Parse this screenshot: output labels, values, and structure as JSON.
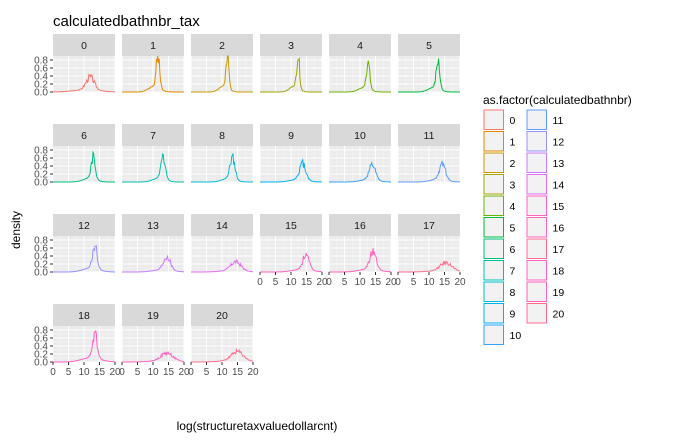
{
  "chart_data": {
    "type": "area",
    "title": "calculatedbathnbr_tax",
    "xlabel": "log(structuretaxvaluedollarcnt)",
    "ylabel": "density",
    "xlim": [
      0,
      20
    ],
    "ylim": [
      0,
      0.9
    ],
    "x_ticks": [
      0,
      5,
      10,
      15,
      20
    ],
    "x_tick_labels": [
      "0",
      "5",
      "10",
      "15",
      "20"
    ],
    "y_ticks": [
      0.0,
      0.2,
      0.4,
      0.6,
      0.8
    ],
    "y_tick_labels": [
      "0.0",
      "0.2",
      "0.4",
      "0.6",
      "0.8"
    ],
    "grid": true,
    "legend_title": "as.factor(calculatedbathnbr)",
    "legend_position": "right",
    "panels": [
      {
        "label": "0",
        "color": "#F8766D",
        "peak": 0.32,
        "center": 12.0,
        "width": 1.3,
        "spread": 4.0
      },
      {
        "label": "1",
        "color": "#E58700",
        "peak": 0.8,
        "center": 11.6,
        "width": 0.55,
        "spread": 1.8
      },
      {
        "label": "2",
        "color": "#C99800",
        "peak": 0.86,
        "center": 11.8,
        "width": 0.45,
        "spread": 1.5
      },
      {
        "label": "3",
        "color": "#A3A500",
        "peak": 0.83,
        "center": 12.3,
        "width": 0.45,
        "spread": 1.5
      },
      {
        "label": "4",
        "color": "#6BB100",
        "peak": 0.64,
        "center": 12.6,
        "width": 0.55,
        "spread": 1.8
      },
      {
        "label": "5",
        "color": "#00BA38",
        "peak": 0.67,
        "center": 12.9,
        "width": 0.55,
        "spread": 1.8
      },
      {
        "label": "6",
        "color": "#00BF7D",
        "peak": 0.55,
        "center": 13.0,
        "width": 0.65,
        "spread": 2.0
      },
      {
        "label": "7",
        "color": "#00C0AF",
        "peak": 0.56,
        "center": 13.3,
        "width": 0.7,
        "spread": 2.0
      },
      {
        "label": "8",
        "color": "#00BCD8",
        "peak": 0.53,
        "center": 13.4,
        "width": 0.8,
        "spread": 2.0
      },
      {
        "label": "9",
        "color": "#00B0F6",
        "peak": 0.4,
        "center": 13.8,
        "width": 1.0,
        "spread": 2.5
      },
      {
        "label": "10",
        "color": "#35A2FF",
        "peak": 0.37,
        "center": 14.0,
        "width": 1.0,
        "spread": 2.5
      },
      {
        "label": "11",
        "color": "#619CFF",
        "peak": 0.38,
        "center": 14.3,
        "width": 1.0,
        "spread": 2.5
      },
      {
        "label": "12",
        "color": "#9590FF",
        "peak": 0.58,
        "center": 13.5,
        "width": 0.7,
        "spread": 2.5
      },
      {
        "label": "13",
        "color": "#C77CFF",
        "peak": 0.33,
        "center": 14.5,
        "width": 1.1,
        "spread": 3.0
      },
      {
        "label": "14",
        "color": "#E76BF3",
        "peak": 0.22,
        "center": 14.5,
        "width": 1.6,
        "spread": 3.5
      },
      {
        "label": "15",
        "color": "#FF61C3",
        "peak": 0.37,
        "center": 14.8,
        "width": 1.0,
        "spread": 3.0
      },
      {
        "label": "16",
        "color": "#FF62BC",
        "peak": 0.44,
        "center": 14.2,
        "width": 1.0,
        "spread": 3.0
      },
      {
        "label": "17",
        "color": "#FF6C91",
        "peak": 0.2,
        "center": 15.5,
        "width": 1.8,
        "spread": 4.0
      },
      {
        "label": "18",
        "color": "#FF61C3",
        "peak": 0.6,
        "center": 13.5,
        "width": 0.8,
        "spread": 3.0
      },
      {
        "label": "19",
        "color": "#FF62BC",
        "peak": 0.19,
        "center": 14.5,
        "width": 1.9,
        "spread": 4.0
      },
      {
        "label": "20",
        "color": "#FF6C91",
        "peak": 0.22,
        "center": 15.0,
        "width": 1.9,
        "spread": 4.0
      }
    ],
    "legend": [
      {
        "label": "0",
        "color": "#F8766D"
      },
      {
        "label": "1",
        "color": "#E58700"
      },
      {
        "label": "2",
        "color": "#C99800"
      },
      {
        "label": "3",
        "color": "#A3A500"
      },
      {
        "label": "4",
        "color": "#6BB100"
      },
      {
        "label": "5",
        "color": "#00BA38"
      },
      {
        "label": "6",
        "color": "#00BF7D"
      },
      {
        "label": "7",
        "color": "#00C0AF"
      },
      {
        "label": "8",
        "color": "#00BCD8"
      },
      {
        "label": "9",
        "color": "#00B0F6"
      },
      {
        "label": "10",
        "color": "#35A2FF"
      },
      {
        "label": "11",
        "color": "#619CFF"
      },
      {
        "label": "12",
        "color": "#9590FF"
      },
      {
        "label": "13",
        "color": "#C77CFF"
      },
      {
        "label": "14",
        "color": "#E76BF3"
      },
      {
        "label": "15",
        "color": "#FF61C3"
      },
      {
        "label": "16",
        "color": "#FF62BC"
      },
      {
        "label": "17",
        "color": "#FF6C91"
      },
      {
        "label": "18",
        "color": "#FF61C3"
      },
      {
        "label": "19",
        "color": "#FF62BC"
      },
      {
        "label": "20",
        "color": "#FF6C91"
      }
    ]
  }
}
